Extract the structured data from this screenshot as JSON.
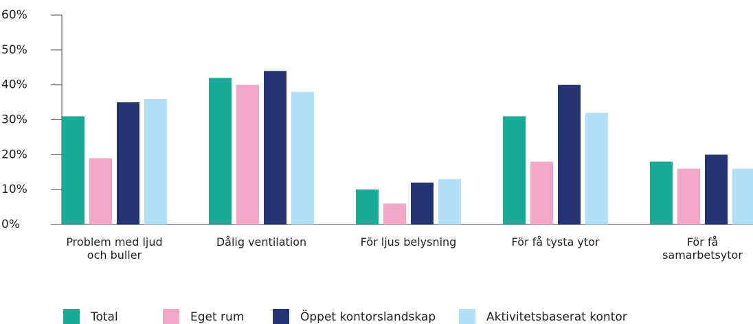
{
  "chart_data": {
    "type": "bar",
    "categories": [
      "Problem med ljud\noch buller",
      "Dålig ventilation",
      "För ljus belysning",
      "För få tysta ytor",
      "För få\nsamarbetsytor"
    ],
    "series": [
      {
        "name": "Total",
        "color": "#1aab96",
        "values": [
          31,
          42,
          10,
          31,
          18
        ]
      },
      {
        "name": "Eget rum",
        "color": "#f4a8c8",
        "values": [
          19,
          40,
          6,
          18,
          16
        ]
      },
      {
        "name": "Öppet kontorslandskap",
        "color": "#253470",
        "values": [
          35,
          44,
          12,
          40,
          20
        ]
      },
      {
        "name": "Aktivitetsbaserat kontor",
        "color": "#b3e0f7",
        "values": [
          36,
          38,
          13,
          32,
          16
        ]
      }
    ],
    "ylim": [
      0,
      60
    ],
    "yticks": [
      {
        "value": 0,
        "label": "0%"
      },
      {
        "value": 10,
        "label": "10%"
      },
      {
        "value": 20,
        "label": "20%"
      },
      {
        "value": 30,
        "label": "30%"
      },
      {
        "value": 40,
        "label": "40%"
      },
      {
        "value": 50,
        "label": "50%"
      },
      {
        "value": 60,
        "label": "60%"
      }
    ],
    "legend": "bottom"
  }
}
